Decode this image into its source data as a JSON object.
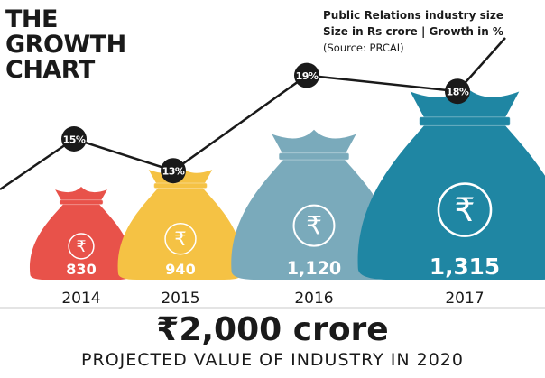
{
  "header": {
    "title_lines": [
      "THE",
      "GROWTH",
      "CHART"
    ],
    "subtitle_line1": "Public Relations industry size",
    "subtitle_line2": "Size in Rs crore | Growth in %",
    "source": "(Source: PRCAI)"
  },
  "chart_data": {
    "type": "bar",
    "categories": [
      "2014",
      "2015",
      "2016",
      "2017"
    ],
    "series": [
      {
        "values": [
          830,
          940,
          1120,
          1315
        ],
        "labels": [
          "830",
          "940",
          "1,120",
          "1,315"
        ]
      },
      {
        "values": [
          15,
          13,
          19,
          18
        ],
        "labels": [
          "15%",
          "13%",
          "19%",
          "18%"
        ]
      }
    ],
    "currency_symbol": "₹",
    "colors": {
      "2014": "#e8524a",
      "2015": "#f5c244",
      "2016": "#7aaabb",
      "2017": "#1f86a3",
      "line": "#1a1a1a",
      "badge": "#1a1a1a"
    }
  },
  "footer": {
    "headline": "₹2,000 crore",
    "caption": "PROJECTED VALUE OF INDUSTRY IN 2020"
  }
}
